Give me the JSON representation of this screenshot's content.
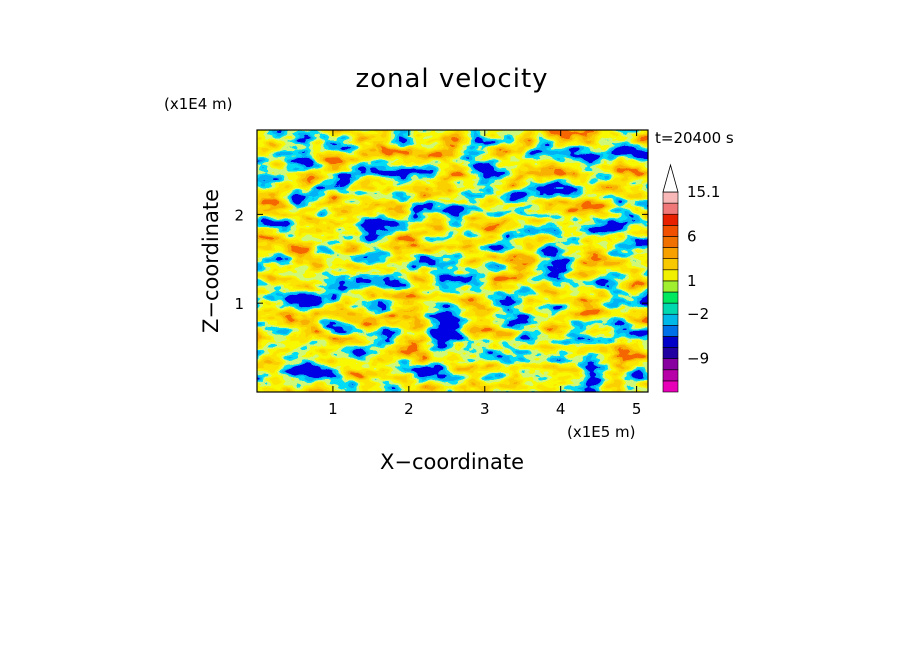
{
  "chart_data": {
    "type": "heatmap",
    "title": "zonal velocity",
    "xlabel": "X−coordinate",
    "ylabel": "Z−coordinate",
    "x_unit": "(x1E5 m)",
    "y_unit": "(x1E4 m)",
    "time_label": "t=20400 s",
    "xlim": [
      0,
      5.15
    ],
    "ylim": [
      0,
      2.95
    ],
    "x_ticks": [
      "1",
      "2",
      "3",
      "4",
      "5"
    ],
    "x_tick_values": [
      1,
      2,
      3,
      4,
      5
    ],
    "y_ticks": [
      "1",
      "2"
    ],
    "y_tick_values": [
      1,
      2
    ],
    "colorbar": {
      "labels": [
        "15.1",
        "6",
        "1",
        "−2",
        "−9"
      ],
      "levels": [
        -15,
        -12,
        -9,
        -6,
        -4,
        -3,
        -2,
        -1,
        0,
        1,
        2,
        3,
        4,
        6,
        8,
        10,
        12.5,
        15.1
      ],
      "colors": [
        "#e800b8",
        "#b800a8",
        "#8800a0",
        "#2000a0",
        "#0000c8",
        "#0070e8",
        "#00b8e8",
        "#00d8b0",
        "#00e860",
        "#a0f030",
        "#f0f000",
        "#f8c800",
        "#f8a000",
        "#f07000",
        "#f05000",
        "#e82000",
        "#f07878",
        "#f8b8b8"
      ],
      "extend": "max"
    }
  }
}
